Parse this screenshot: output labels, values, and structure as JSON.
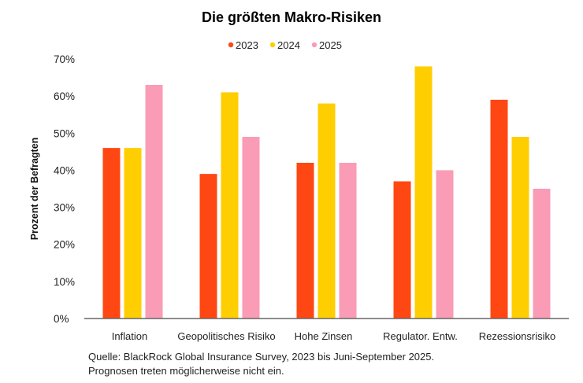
{
  "chart_data": {
    "type": "bar",
    "title": "Die größten Makro-Risiken",
    "ylabel": "Prozent der Befragten",
    "xlabel": "",
    "ylim": [
      0,
      70
    ],
    "yticks": [
      "0%",
      "10%",
      "20%",
      "30%",
      "40%",
      "50%",
      "60%",
      "70%"
    ],
    "grid": false,
    "legend_position": "top-center",
    "categories": [
      "Inflation",
      "Geopolitisches Risiko",
      "Hohe Zinsen",
      "Regulator. Entw.",
      "Rezessionsrisiko"
    ],
    "series": [
      {
        "name": "2023",
        "color": "#ff4713",
        "values": [
          46,
          39,
          42,
          37,
          59
        ]
      },
      {
        "name": "2024",
        "color": "#ffce00",
        "values": [
          46,
          61,
          58,
          68,
          49
        ]
      },
      {
        "name": "2025",
        "color": "#fa9cb6",
        "values": [
          63,
          49,
          42,
          40,
          35
        ]
      }
    ]
  },
  "source": {
    "line1": "Quelle: BlackRock Global Insurance Survey, 2023 bis Juni-September 2025.",
    "line2": "Prognosen treten möglicherweise nicht ein."
  }
}
